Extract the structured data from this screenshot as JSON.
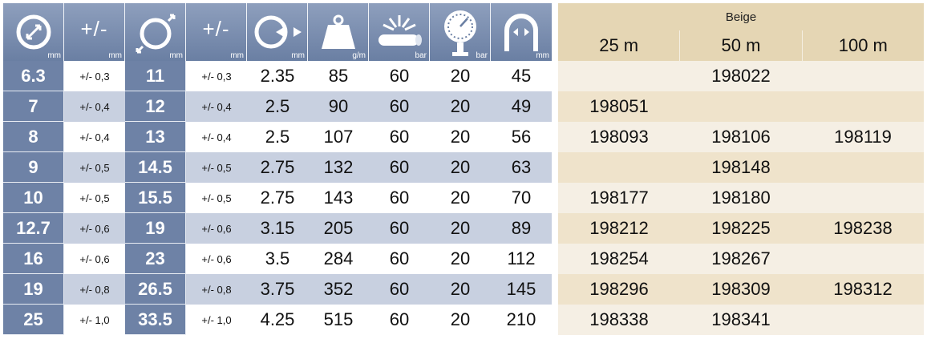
{
  "header": {
    "units": [
      "mm",
      "mm",
      "mm",
      "mm",
      "mm",
      "g/m",
      "bar",
      "bar",
      "mm"
    ],
    "tolerance_label": "+/-",
    "icons": [
      "inner-diameter-icon",
      "tolerance-icon",
      "outer-diameter-icon",
      "tolerance-icon",
      "wall-thickness-icon",
      "weight-icon",
      "burst-pressure-icon",
      "pressure-gauge-icon",
      "bend-radius-icon"
    ]
  },
  "right": {
    "color_label": "Beige",
    "lengths": [
      "25 m",
      "50 m",
      "100 m"
    ]
  },
  "rows": [
    {
      "id": "6.3",
      "id_tol": "+/- 0,3",
      "od": "11",
      "od_tol": "+/- 0,3",
      "wall": "2.35",
      "weight": "85",
      "burst": "60",
      "work": "20",
      "bend": "45",
      "a": "",
      "b": "198022",
      "c": ""
    },
    {
      "id": "7",
      "id_tol": "+/- 0,4",
      "od": "12",
      "od_tol": "+/- 0,4",
      "wall": "2.5",
      "weight": "90",
      "burst": "60",
      "work": "20",
      "bend": "49",
      "a": "198051",
      "b": "",
      "c": ""
    },
    {
      "id": "8",
      "id_tol": "+/- 0,4",
      "od": "13",
      "od_tol": "+/- 0,4",
      "wall": "2.5",
      "weight": "107",
      "burst": "60",
      "work": "20",
      "bend": "56",
      "a": "198093",
      "b": "198106",
      "c": "198119"
    },
    {
      "id": "9",
      "id_tol": "+/- 0,5",
      "od": "14.5",
      "od_tol": "+/- 0,5",
      "wall": "2.75",
      "weight": "132",
      "burst": "60",
      "work": "20",
      "bend": "63",
      "a": "",
      "b": "198148",
      "c": ""
    },
    {
      "id": "10",
      "id_tol": "+/- 0,5",
      "od": "15.5",
      "od_tol": "+/- 0,5",
      "wall": "2.75",
      "weight": "143",
      "burst": "60",
      "work": "20",
      "bend": "70",
      "a": "198177",
      "b": "198180",
      "c": ""
    },
    {
      "id": "12.7",
      "id_tol": "+/- 0,6",
      "od": "19",
      "od_tol": "+/- 0,6",
      "wall": "3.15",
      "weight": "205",
      "burst": "60",
      "work": "20",
      "bend": "89",
      "a": "198212",
      "b": "198225",
      "c": "198238"
    },
    {
      "id": "16",
      "id_tol": "+/- 0,6",
      "od": "23",
      "od_tol": "+/- 0,6",
      "wall": "3.5",
      "weight": "284",
      "burst": "60",
      "work": "20",
      "bend": "112",
      "a": "198254",
      "b": "198267",
      "c": ""
    },
    {
      "id": "19",
      "id_tol": "+/- 0,8",
      "od": "26.5",
      "od_tol": "+/- 0,8",
      "wall": "3.75",
      "weight": "352",
      "burst": "60",
      "work": "20",
      "bend": "145",
      "a": "198296",
      "b": "198309",
      "c": "198312"
    },
    {
      "id": "25",
      "id_tol": "+/- 1,0",
      "od": "33.5",
      "od_tol": "+/- 1,0",
      "wall": "4.25",
      "weight": "515",
      "burst": "60",
      "work": "20",
      "bend": "210",
      "a": "198338",
      "b": "198341",
      "c": ""
    }
  ]
}
